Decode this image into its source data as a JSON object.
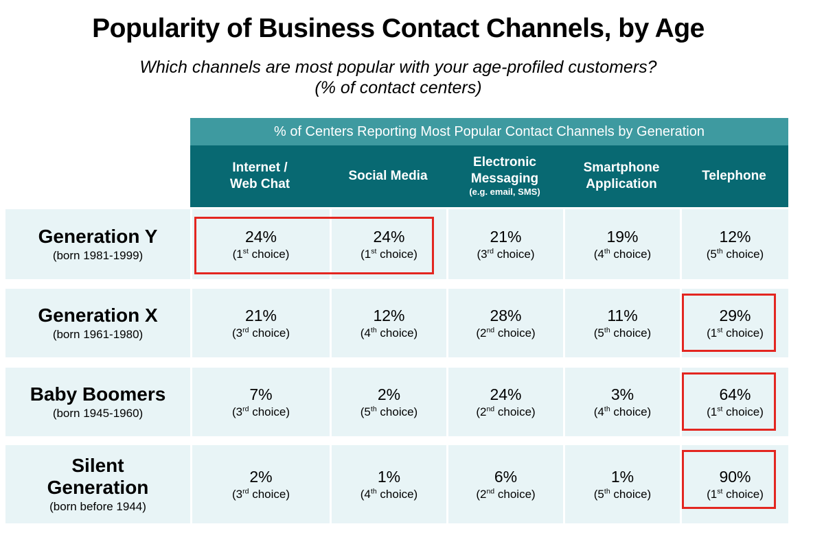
{
  "colors": {
    "banner_teal": "#3e9aa0",
    "header_teal": "#086972",
    "row_bg": "#e8f4f6",
    "highlight_red": "#e32620",
    "header_text": "#ffffff",
    "text": "#000000"
  },
  "page": {
    "title": "Popularity of Business Contact Channels, by Age",
    "subtitle_line1": "Which channels are most popular with your age-profiled customers?",
    "subtitle_line2": "(% of contact centers)"
  },
  "table": {
    "banner": "% of Centers Reporting Most Popular Contact Channels by Generation",
    "columns": [
      {
        "label": "Internet /\nWeb Chat",
        "note": ""
      },
      {
        "label": "Social Media",
        "note": ""
      },
      {
        "label": "Electronic\nMessaging",
        "note": "(e.g. email, SMS)"
      },
      {
        "label": "Smartphone\nApplication",
        "note": ""
      },
      {
        "label": "Telephone",
        "note": ""
      }
    ],
    "rows": [
      {
        "generation": "Generation Y",
        "born": "(born 1981-1999)",
        "cells": [
          {
            "value": "24%",
            "rank_prefix": "(1",
            "rank_sup": "st",
            "rank_suffix": " choice)"
          },
          {
            "value": "24%",
            "rank_prefix": "(1",
            "rank_sup": "st",
            "rank_suffix": " choice)"
          },
          {
            "value": "21%",
            "rank_prefix": "(3",
            "rank_sup": "rd",
            "rank_suffix": " choice)"
          },
          {
            "value": "19%",
            "rank_prefix": "(4",
            "rank_sup": "th",
            "rank_suffix": " choice)"
          },
          {
            "value": "12%",
            "rank_prefix": "(5",
            "rank_sup": "th",
            "rank_suffix": " choice)"
          }
        ]
      },
      {
        "generation": "Generation X",
        "born": "(born 1961-1980)",
        "cells": [
          {
            "value": "21%",
            "rank_prefix": "(3",
            "rank_sup": "rd",
            "rank_suffix": " choice)"
          },
          {
            "value": "12%",
            "rank_prefix": "(4",
            "rank_sup": "th",
            "rank_suffix": " choice)"
          },
          {
            "value": "28%",
            "rank_prefix": "(2",
            "rank_sup": "nd",
            "rank_suffix": " choice)"
          },
          {
            "value": "11%",
            "rank_prefix": "(5",
            "rank_sup": "th",
            "rank_suffix": " choice)"
          },
          {
            "value": "29%",
            "rank_prefix": "(1",
            "rank_sup": "st",
            "rank_suffix": " choice)"
          }
        ]
      },
      {
        "generation": "Baby Boomers",
        "born": "(born 1945-1960)",
        "cells": [
          {
            "value": "7%",
            "rank_prefix": "(3",
            "rank_sup": "rd",
            "rank_suffix": " choice)"
          },
          {
            "value": "2%",
            "rank_prefix": "(5",
            "rank_sup": "th",
            "rank_suffix": " choice)"
          },
          {
            "value": "24%",
            "rank_prefix": "(2",
            "rank_sup": "nd",
            "rank_suffix": " choice)"
          },
          {
            "value": "3%",
            "rank_prefix": "(4",
            "rank_sup": "th",
            "rank_suffix": " choice)"
          },
          {
            "value": "64%",
            "rank_prefix": "(1",
            "rank_sup": "st",
            "rank_suffix": " choice)"
          }
        ]
      },
      {
        "generation": "Silent\nGeneration",
        "born": "(born before 1944)",
        "cells": [
          {
            "value": "2%",
            "rank_prefix": "(3",
            "rank_sup": "rd",
            "rank_suffix": " choice)"
          },
          {
            "value": "1%",
            "rank_prefix": "(4",
            "rank_sup": "th",
            "rank_suffix": " choice)"
          },
          {
            "value": "6%",
            "rank_prefix": "(2",
            "rank_sup": "nd",
            "rank_suffix": " choice)"
          },
          {
            "value": "1%",
            "rank_prefix": "(5",
            "rank_sup": "th",
            "rank_suffix": " choice)"
          },
          {
            "value": "90%",
            "rank_prefix": "(1",
            "rank_sup": "st",
            "rank_suffix": " choice)"
          }
        ]
      }
    ]
  },
  "chart_data": {
    "type": "table",
    "title": "Popularity of Business Contact Channels, by Age",
    "subtitle": "Which channels are most popular with your age-profiled customers? (% of contact centers)",
    "header_banner": "% of Centers Reporting Most Popular Contact Channels by Generation",
    "columns": [
      "Internet / Web Chat",
      "Social Media",
      "Electronic Messaging (e.g. email, SMS)",
      "Smartphone Application",
      "Telephone"
    ],
    "rows": [
      {
        "generation": "Generation Y (born 1981-1999)",
        "values_pct": [
          24,
          24,
          21,
          19,
          12
        ],
        "ranks": [
          "1st",
          "1st",
          "3rd",
          "4th",
          "5th"
        ],
        "highlighted_cells": [
          "Internet / Web Chat",
          "Social Media"
        ]
      },
      {
        "generation": "Generation X (born 1961-1980)",
        "values_pct": [
          21,
          12,
          28,
          11,
          29
        ],
        "ranks": [
          "3rd",
          "4th",
          "2nd",
          "5th",
          "1st"
        ],
        "highlighted_cells": [
          "Telephone"
        ]
      },
      {
        "generation": "Baby Boomers (born 1945-1960)",
        "values_pct": [
          7,
          2,
          24,
          3,
          64
        ],
        "ranks": [
          "3rd",
          "5th",
          "2nd",
          "4th",
          "1st"
        ],
        "highlighted_cells": [
          "Telephone"
        ]
      },
      {
        "generation": "Silent Generation (born before 1944)",
        "values_pct": [
          2,
          1,
          6,
          1,
          90
        ],
        "ranks": [
          "3rd",
          "4th",
          "2nd",
          "5th",
          "1st"
        ],
        "highlighted_cells": [
          "Telephone"
        ]
      }
    ],
    "highlight_meaning": "Red boxes mark each generation's 1st-choice channel(s)"
  }
}
